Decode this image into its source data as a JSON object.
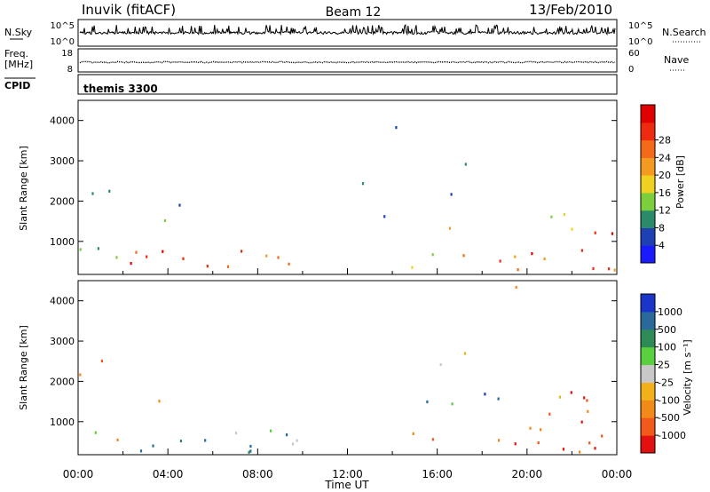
{
  "header": {
    "station": "Inuvik (fitACF)",
    "beam": "Beam 12",
    "date": "13/Feb/2010"
  },
  "noise_panel": {
    "left_label": "N.Sky",
    "right_label": "N.Search",
    "left_ticks": [
      "10^5",
      "10^0"
    ],
    "right_ticks": [
      "10^5",
      "10^0"
    ]
  },
  "freq_panel": {
    "left_label_1": "Freq.",
    "left_label_2": "[MHz]",
    "left_ticks": [
      "18",
      "8"
    ],
    "right_label": "Nave",
    "right_ticks": [
      "60",
      "0"
    ]
  },
  "cpid_panel": {
    "label": "CPID",
    "value": "themis 3300"
  },
  "chart_data": [
    {
      "type": "heatmap",
      "name": "power",
      "ylabel": "Slant Range [km]",
      "yticks": [
        "1000",
        "2000",
        "3000",
        "4000"
      ],
      "ylim": [
        180,
        4500
      ],
      "colorbar_label": "Power [dB]",
      "colorbar_ticks": [
        "4",
        "8",
        "12",
        "16",
        "20",
        "24",
        "28"
      ],
      "colorbar_colors": [
        "#1a1aff",
        "#1f3fb4",
        "#2b8a6a",
        "#7ccf3c",
        "#f0d020",
        "#f59a20",
        "#f26a1a",
        "#ee2a10",
        "#e00000"
      ]
    },
    {
      "type": "heatmap",
      "name": "velocity",
      "ylabel": "Slant Range [km]",
      "yticks": [
        "1000",
        "2000",
        "3000",
        "4000"
      ],
      "ylim": [
        180,
        4500
      ],
      "colorbar_label": "Velocity [m s⁻¹]",
      "colorbar_ticks": [
        "1000",
        "500",
        "100",
        "25",
        "-25",
        "-100",
        "-500",
        "-1000"
      ],
      "colorbar_colors": [
        "#1a35c8",
        "#2a6a9a",
        "#2e8b57",
        "#5ad040",
        "#c8c8c8",
        "#f2b11a",
        "#f28a1a",
        "#f2591a",
        "#e21010"
      ]
    }
  ],
  "time_axis": {
    "label": "Time UT",
    "ticks": [
      "00:00",
      "04:00",
      "08:00",
      "12:00",
      "16:00",
      "20:00",
      "00:00"
    ]
  }
}
